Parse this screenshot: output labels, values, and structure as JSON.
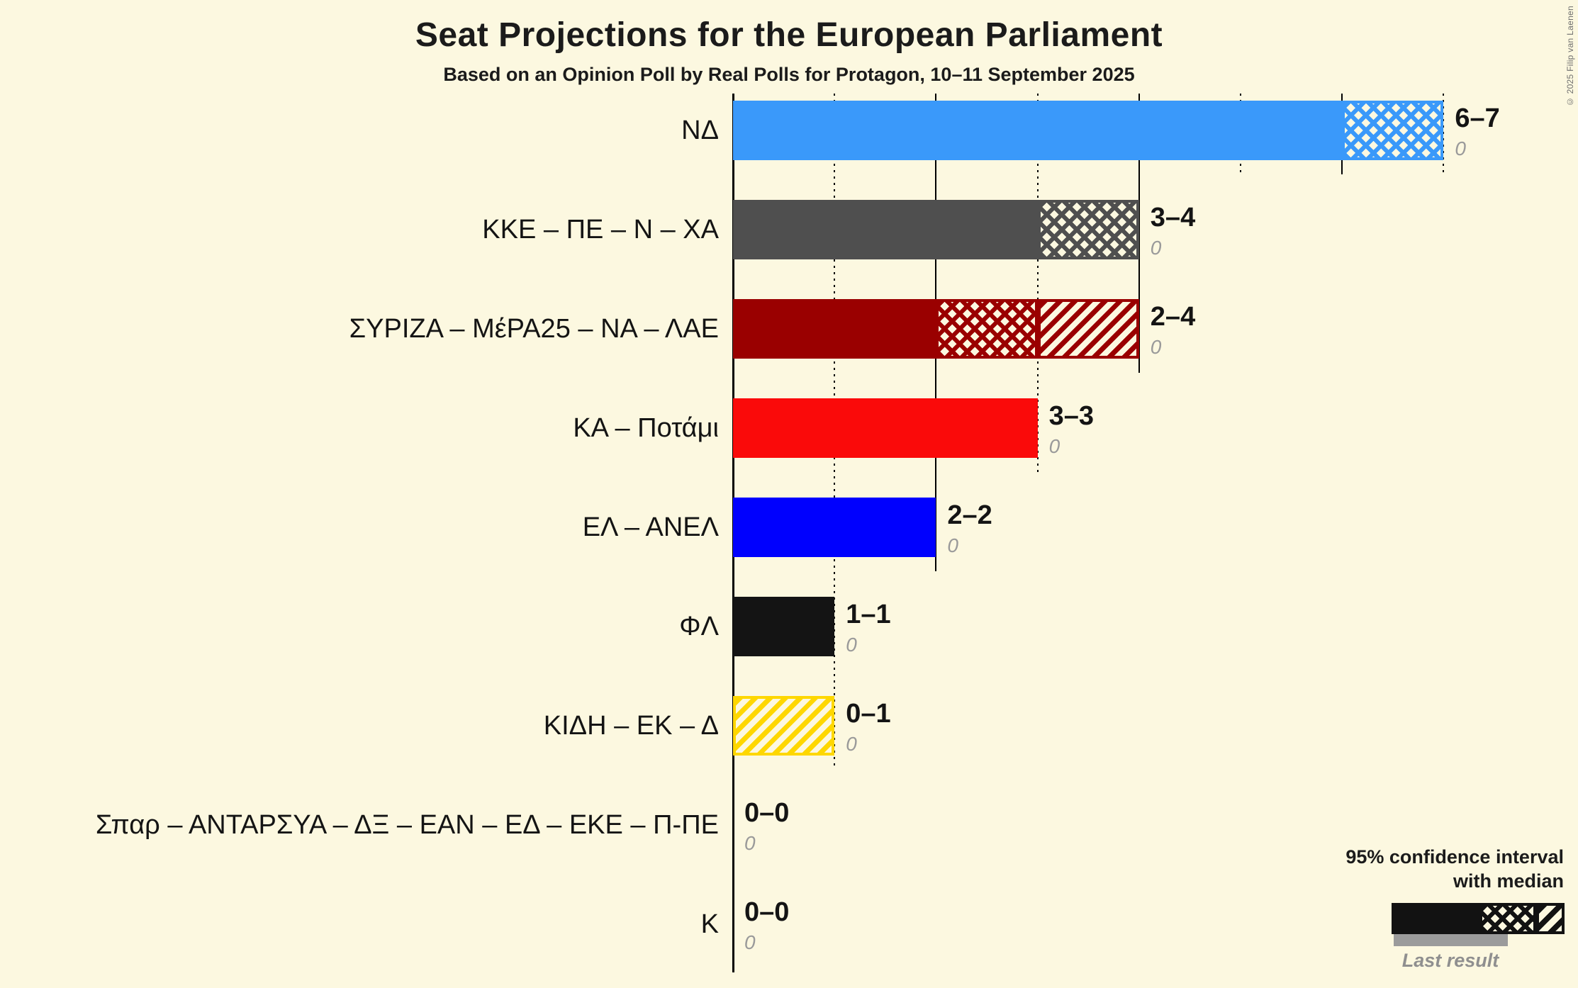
{
  "title": "Seat Projections for the European Parliament",
  "subtitle": "Based on an Opinion Poll by Real Polls for Protagon, 10–11 September 2025",
  "copyright": "© 2025 Filip van Laenen",
  "legend": {
    "ci_line1": "95% confidence interval",
    "ci_line2": "with median",
    "last_result_label": "Last result"
  },
  "colors": {
    "background": "#fcf8e0",
    "axis": "#000000",
    "last_result_bar": "#9b9b9b",
    "last_result_text": "#9a9a9a",
    "text": "#141414"
  },
  "chart_data": {
    "type": "bar",
    "orientation": "horizontal",
    "title": "Seat Projections for the European Parliament",
    "subtitle": "Based on an Opinion Poll by Real Polls for Protagon, 10–11 September 2025",
    "x_axis": {
      "min": 0,
      "max": 7,
      "unit": "seats",
      "solid_gridlines": [
        0,
        2,
        4,
        6
      ],
      "dotted_gridlines": [
        1,
        3,
        5,
        7
      ]
    },
    "legend_note": "95% confidence interval with median; gray bar = Last result",
    "bars": [
      {
        "label": "ΝΔ",
        "value_label": "6–7",
        "ci_low": 6,
        "median": 7,
        "ci_high": 7,
        "last_result": "0",
        "color": "#3a99fa"
      },
      {
        "label": "ΚΚΕ – ΠΕ – Ν – ΧΑ",
        "value_label": "3–4",
        "ci_low": 3,
        "median": 4,
        "ci_high": 4,
        "last_result": "0",
        "color": "#4f4f4f"
      },
      {
        "label": "ΣΥΡΙΖΑ – ΜέΡΑ25 – ΝΑ – ΛΑΕ",
        "value_label": "2–4",
        "ci_low": 2,
        "median": 3,
        "ci_high": 4,
        "last_result": "0",
        "color": "#9a0000"
      },
      {
        "label": "ΚΑ – Ποτάμι",
        "value_label": "3–3",
        "ci_low": 3,
        "median": 3,
        "ci_high": 3,
        "last_result": "0",
        "color": "#fa0a0a"
      },
      {
        "label": "ΕΛ – ΑΝΕΛ",
        "value_label": "2–2",
        "ci_low": 2,
        "median": 2,
        "ci_high": 2,
        "last_result": "0",
        "color": "#0000fe"
      },
      {
        "label": "ΦΛ",
        "value_label": "1–1",
        "ci_low": 1,
        "median": 1,
        "ci_high": 1,
        "last_result": "0",
        "color": "#141414"
      },
      {
        "label": "ΚΙΔΗ – ΕΚ – Δ",
        "value_label": "0–1",
        "ci_low": 0,
        "median": 0,
        "ci_high": 1,
        "last_result": "0",
        "color": "#fed700"
      },
      {
        "label": "Σπαρ – ΑΝΤΑΡΣΥΑ – ΔΞ – ΕΑΝ – ΕΔ – ΕΚΕ – Π-ΠΕ",
        "value_label": "0–0",
        "ci_low": 0,
        "median": 0,
        "ci_high": 0,
        "last_result": "0",
        "color": "#141414"
      },
      {
        "label": "Κ",
        "value_label": "0–0",
        "ci_low": 0,
        "median": 0,
        "ci_high": 0,
        "last_result": "0",
        "color": "#141414"
      }
    ]
  }
}
